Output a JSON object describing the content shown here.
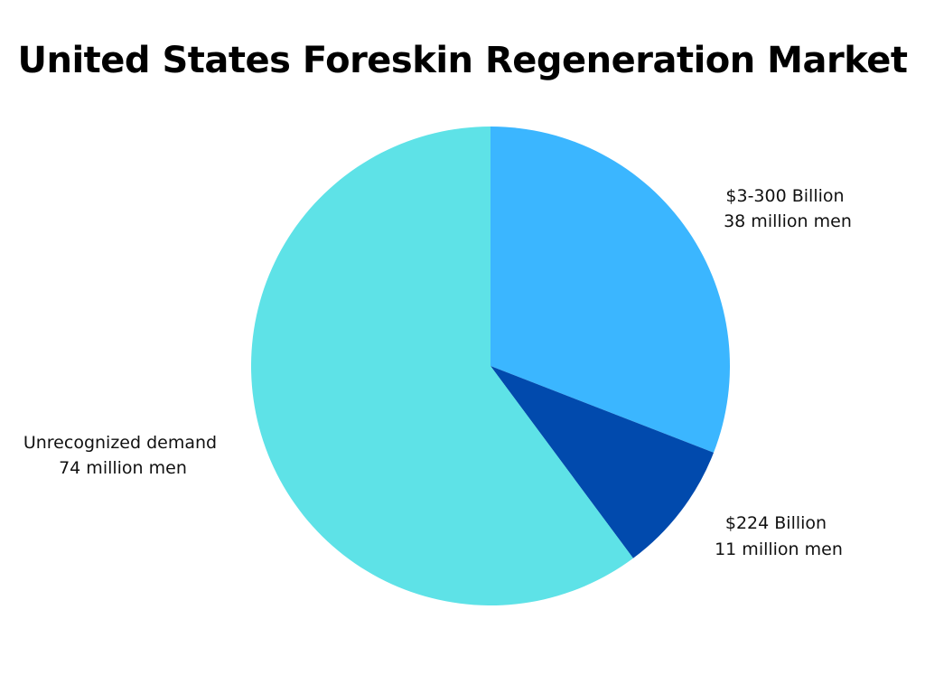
{
  "chart_data": {
    "type": "pie",
    "title": "United States Foreskin Regeneration Market",
    "legend": "none",
    "slices": [
      {
        "label_lines": [
          "$3-300 Billion",
          "38 million men"
        ],
        "value": 38,
        "color": "#3bb6ff"
      },
      {
        "label_lines": [
          "$224 Billion",
          "11 million men"
        ],
        "value": 11,
        "color": "#014aad"
      },
      {
        "label_lines": [
          "Unrecognized demand",
          "74 million men"
        ],
        "value": 74,
        "color": "#5ee2e7"
      }
    ]
  }
}
